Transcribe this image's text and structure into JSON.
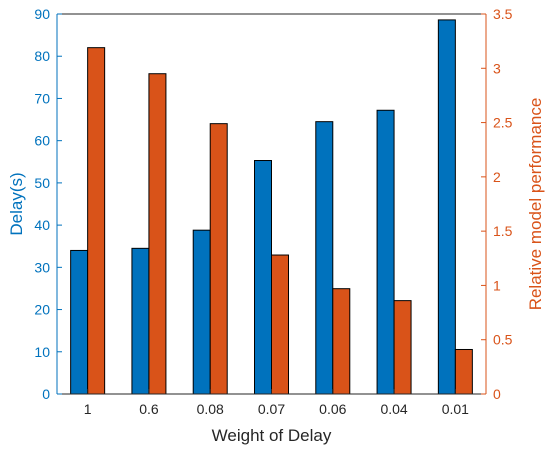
{
  "chart_data": {
    "type": "bar",
    "categories": [
      "1",
      "0.6",
      "0.08",
      "0.07",
      "0.06",
      "0.04",
      "0.01"
    ],
    "series": [
      {
        "values": [
          34,
          34.5,
          38.8,
          55.3,
          64.5,
          67.2,
          88.6
        ],
        "color": "#0072BD",
        "axis": "left"
      },
      {
        "values": [
          3.19,
          2.95,
          2.49,
          1.28,
          0.97,
          0.86,
          0.41
        ],
        "color": "#D95319",
        "axis": "right"
      }
    ],
    "xlabel": "Weight of Delay",
    "ylabel": "Delay(s)",
    "ylabel_right": "Relative model performance",
    "ylim": [
      0,
      90
    ],
    "ylim_right": [
      0,
      3.5
    ],
    "yticks": [
      "0",
      "10",
      "20",
      "30",
      "40",
      "50",
      "60",
      "70",
      "80",
      "90"
    ],
    "yticks_right": [
      "0",
      "0.5",
      "1",
      "1.5",
      "2",
      "2.5",
      "3",
      "3.5"
    ],
    "left_axis_color": "#0072BD",
    "right_axis_color": "#D95319",
    "grid": false
  }
}
